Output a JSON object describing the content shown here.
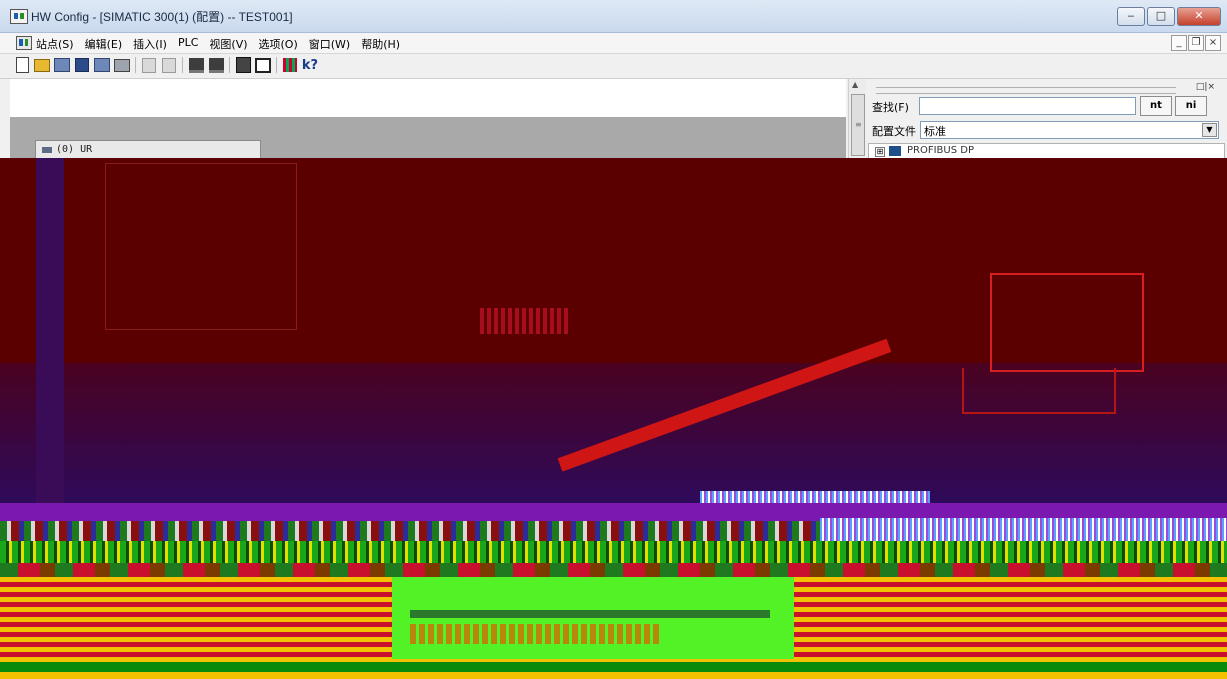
{
  "window": {
    "title": "HW Config - [SIMATIC 300(1) (配置) -- TEST001]",
    "controls": [
      "minimize",
      "maximize",
      "close"
    ]
  },
  "menu": {
    "items": [
      "站点(S)",
      "编辑(E)",
      "插入(I)",
      "PLC",
      "视图(V)",
      "选项(O)",
      "窗口(W)",
      "帮助(H)"
    ],
    "mdi_controls": [
      "_",
      "❐",
      "×"
    ]
  },
  "toolbar": {
    "icons": [
      "new-icon",
      "open-icon",
      "network-icon",
      "save-icon",
      "save-compile-icon",
      "print-icon",
      "copy-icon",
      "paste-icon",
      "download-icon",
      "upload-icon",
      "rack-icon",
      "window-icon",
      "netpro-icon",
      "help-icon"
    ]
  },
  "station": {
    "rack_label": "(0) UR"
  },
  "catalog": {
    "caption_buttons": "□|×",
    "find_label": "查找(F)",
    "find_value": "",
    "find_down_label": "nt",
    "find_up_label": "ni",
    "profile_label": "配置文件",
    "profile_value": "标准",
    "tree_expander": "⊞",
    "tree_label": "PROFIBUS DP"
  },
  "colors": {
    "glitch_base": "#5a0000",
    "glitch_red": "#c8102e",
    "glitch_yellow": "#f2c200",
    "glitch_green": "#52f227"
  }
}
